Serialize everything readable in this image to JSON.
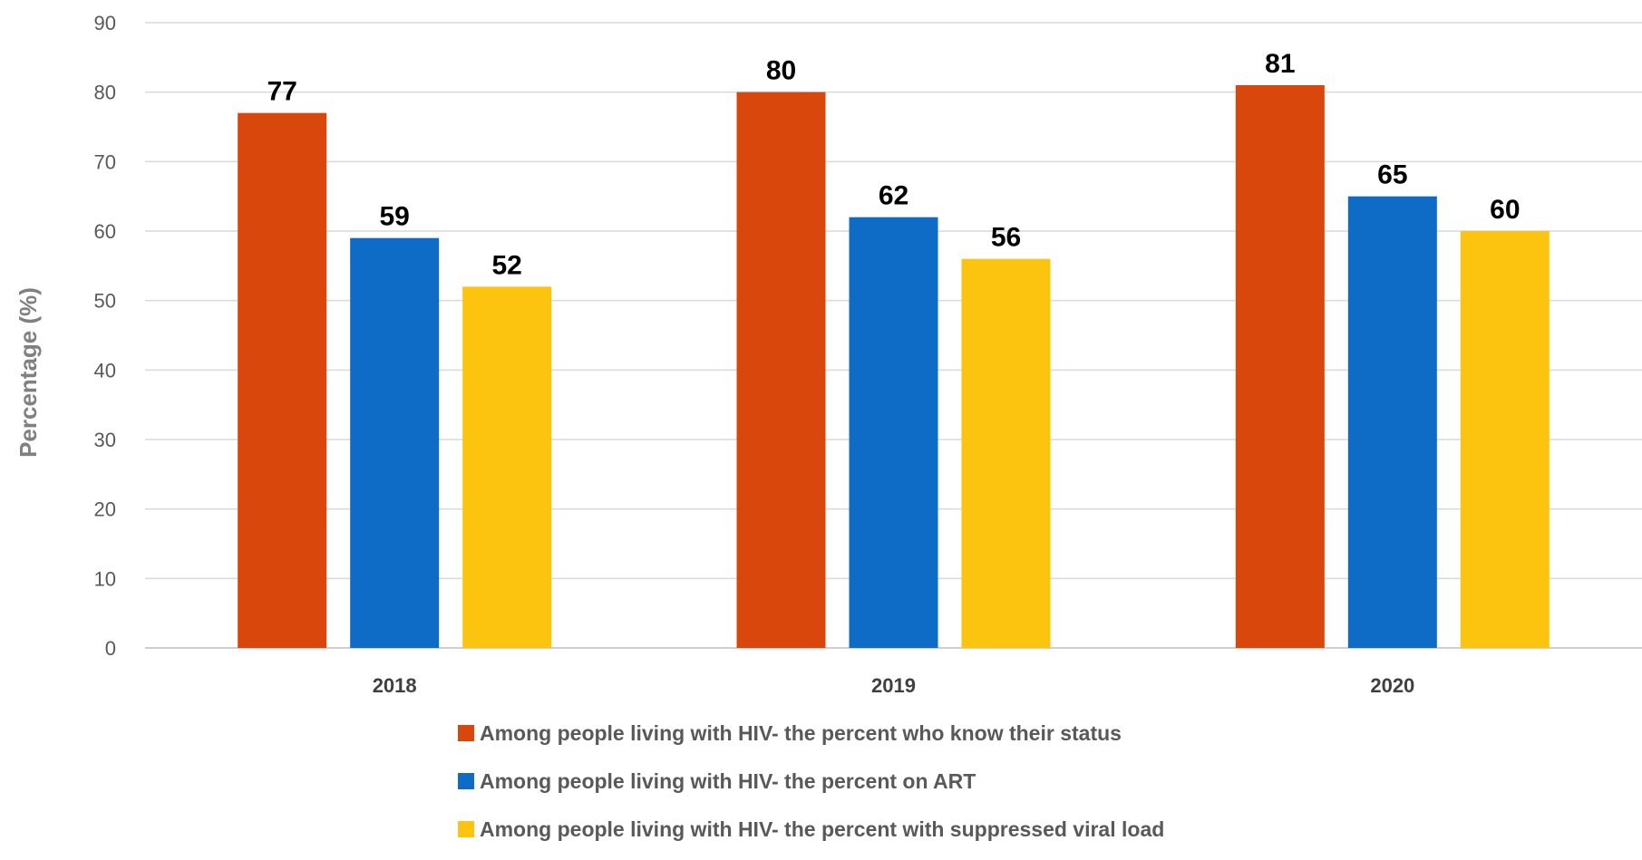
{
  "chart_data": {
    "type": "bar",
    "categories": [
      "2018",
      "2019",
      "2020"
    ],
    "series": [
      {
        "name": "Among people living with HIV- the percent who know their status",
        "color": "#D9470C",
        "values": [
          77,
          80,
          81
        ]
      },
      {
        "name": "Among people living with HIV- the percent on ART",
        "color": "#0F6CC6",
        "values": [
          59,
          62,
          65
        ]
      },
      {
        "name": "Among people living with HIV- the percent with suppressed viral load",
        "color": "#FDC40F",
        "values": [
          52,
          56,
          60
        ]
      }
    ],
    "title": "",
    "xlabel": "",
    "ylabel": "Percentage (%)",
    "ylim": [
      0,
      90
    ],
    "yticks": [
      0,
      10,
      20,
      30,
      40,
      50,
      60,
      70,
      80,
      90
    ],
    "grid": true,
    "legend_position": "bottom",
    "data_labels": true
  }
}
